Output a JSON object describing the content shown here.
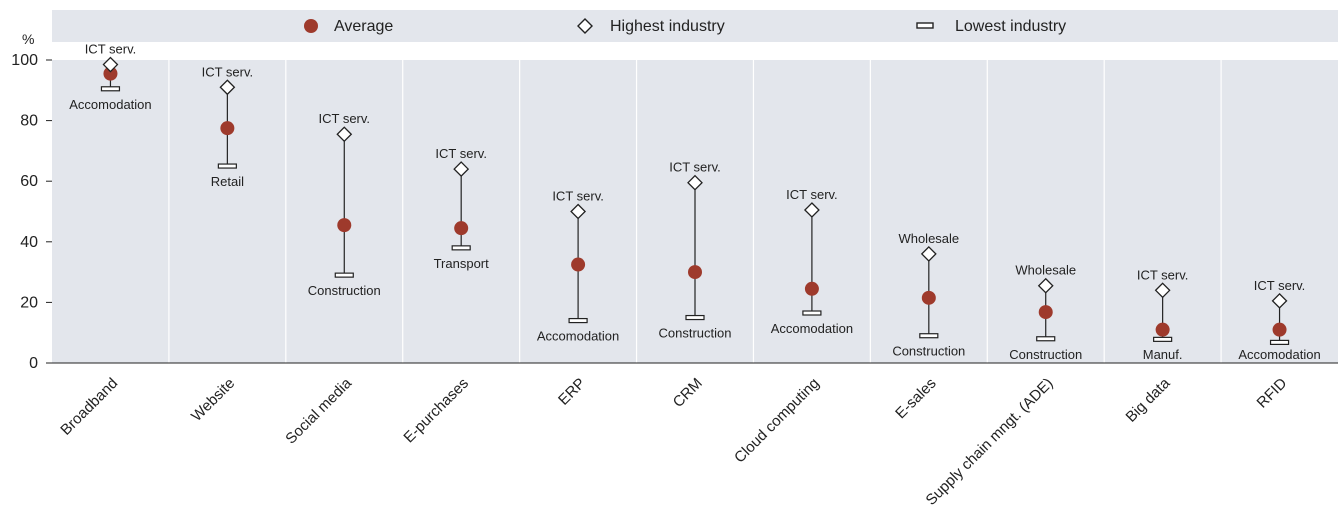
{
  "chart_data": {
    "type": "range_dot",
    "unit_label": "%",
    "ylim": [
      0,
      100
    ],
    "yticks": [
      0,
      20,
      40,
      60,
      80,
      100
    ],
    "grid": false,
    "legend_position": "top",
    "legend": [
      {
        "key": "average",
        "label": "Average",
        "marker": "filled-circle",
        "color": "#9e3a2c"
      },
      {
        "key": "highest",
        "label": "Highest industry",
        "marker": "diamond",
        "color": "#222222"
      },
      {
        "key": "lowest",
        "label": "Lowest industry",
        "marker": "horizontal-bar",
        "color": "#222222"
      }
    ],
    "categories": [
      "Broadband",
      "Website",
      "Social media",
      "E-purchases",
      "ERP",
      "CRM",
      "Cloud computing",
      "E-sales",
      "Supply chain mngt. (ADE)",
      "Big data",
      "RFID"
    ],
    "series": [
      {
        "name": "Average",
        "values": [
          95.5,
          77.5,
          45.5,
          44.5,
          32.5,
          30,
          24.5,
          21.5,
          16.8,
          11,
          11
        ]
      },
      {
        "name": "Highest industry",
        "values": [
          98.5,
          91,
          75.5,
          64,
          50,
          59.5,
          50.5,
          36,
          25.5,
          24,
          20.5
        ]
      },
      {
        "name": "Lowest industry",
        "values": [
          90.5,
          65,
          29,
          38,
          14,
          15,
          16.5,
          9,
          8,
          7.8,
          6.8
        ]
      }
    ],
    "highest_labels": [
      "ICT serv.",
      "ICT serv.",
      "ICT serv.",
      "ICT serv.",
      "ICT serv.",
      "ICT serv.",
      "ICT serv.",
      "Wholesale",
      "Wholesale",
      "ICT serv.",
      "ICT serv."
    ],
    "lowest_labels": [
      "Accomodation",
      "Retail",
      "Construction",
      "Transport",
      "Accomodation",
      "Construction",
      "Accomodation",
      "Construction",
      "Construction",
      "Manuf.",
      "Accomodation"
    ],
    "colors": {
      "average": "#9e3a2c",
      "panel": "#e3e6ec",
      "axis": "#222222",
      "separator": "#ffffff"
    }
  }
}
